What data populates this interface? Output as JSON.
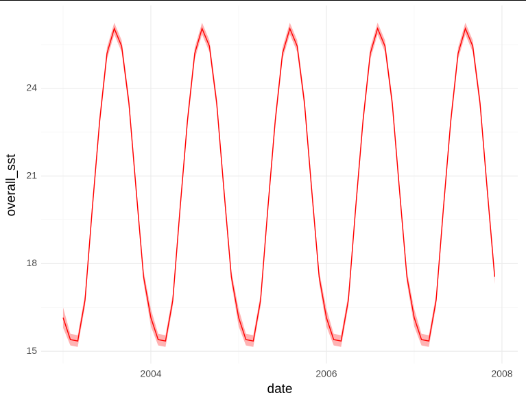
{
  "chart_data": {
    "type": "line",
    "x_label": "date",
    "y_label": "overall_sst",
    "x": [
      2003,
      2003.083,
      2003.167,
      2003.25,
      2003.333,
      2003.417,
      2003.5,
      2003.583,
      2003.667,
      2003.75,
      2003.833,
      2003.917,
      2004,
      2004.083,
      2004.167,
      2004.25,
      2004.333,
      2004.417,
      2004.5,
      2004.583,
      2004.667,
      2004.75,
      2004.833,
      2004.917,
      2005,
      2005.083,
      2005.167,
      2005.25,
      2005.333,
      2005.417,
      2005.5,
      2005.583,
      2005.667,
      2005.75,
      2005.833,
      2005.917,
      2006,
      2006.083,
      2006.167,
      2006.25,
      2006.333,
      2006.417,
      2006.5,
      2006.583,
      2006.667,
      2006.75,
      2006.833,
      2006.917,
      2007,
      2007.083,
      2007.167,
      2007.25,
      2007.333,
      2007.417,
      2007.5,
      2007.583,
      2007.667,
      2007.75,
      2007.833,
      2007.917
    ],
    "values": [
      16.15,
      15.4,
      15.35,
      16.75,
      19.9,
      22.9,
      25.2,
      26.05,
      25.45,
      23.5,
      20.5,
      17.55,
      16.15,
      15.4,
      15.35,
      16.75,
      19.9,
      22.9,
      25.2,
      26.05,
      25.45,
      23.5,
      20.5,
      17.55,
      16.15,
      15.4,
      15.35,
      16.75,
      19.9,
      22.9,
      25.2,
      26.05,
      25.45,
      23.5,
      20.5,
      17.55,
      16.15,
      15.4,
      15.35,
      16.75,
      19.9,
      22.9,
      25.2,
      26.05,
      25.45,
      23.5,
      20.5,
      17.55,
      16.15,
      15.4,
      15.35,
      16.75,
      19.9,
      22.9,
      25.2,
      26.05,
      25.45,
      23.5,
      20.5,
      17.55
    ],
    "upper": [
      16.5,
      15.6,
      15.55,
      16.95,
      20.1,
      23.1,
      25.4,
      26.25,
      25.65,
      23.7,
      20.7,
      17.75,
      16.45,
      15.6,
      15.55,
      16.95,
      20.1,
      23.1,
      25.4,
      26.25,
      25.65,
      23.7,
      20.7,
      17.75,
      16.45,
      15.6,
      15.55,
      16.95,
      20.1,
      23.1,
      25.4,
      26.25,
      25.65,
      23.7,
      20.7,
      17.75,
      16.45,
      15.6,
      15.55,
      16.95,
      20.1,
      23.1,
      25.4,
      26.25,
      25.65,
      23.7,
      20.7,
      17.75,
      16.45,
      15.6,
      15.55,
      16.95,
      20.1,
      23.1,
      25.4,
      26.25,
      25.65,
      23.7,
      20.7,
      17.75
    ],
    "lower": [
      15.8,
      15.2,
      15.15,
      16.55,
      19.7,
      22.7,
      25.0,
      25.85,
      25.25,
      23.3,
      20.3,
      17.35,
      15.85,
      15.2,
      15.15,
      16.55,
      19.7,
      22.7,
      25.0,
      25.85,
      25.25,
      23.3,
      20.3,
      17.35,
      15.85,
      15.2,
      15.15,
      16.55,
      19.7,
      22.7,
      25.0,
      25.85,
      25.25,
      23.3,
      20.3,
      17.35,
      15.85,
      15.2,
      15.15,
      16.55,
      19.7,
      22.7,
      25.0,
      25.85,
      25.25,
      23.3,
      20.3,
      17.35,
      15.85,
      15.2,
      15.15,
      16.55,
      19.7,
      22.7,
      25.0,
      25.85,
      25.25,
      23.3,
      20.3,
      17.3
    ],
    "color": "#ff0000",
    "band_color": "#ff8080",
    "xlim": [
      2002.75,
      2008.18
    ],
    "xticks": [
      2004,
      2006,
      2008
    ],
    "ylim": [
      14.58,
      26.84
    ],
    "yticks": [
      15,
      18,
      21,
      24
    ],
    "grid": true
  }
}
